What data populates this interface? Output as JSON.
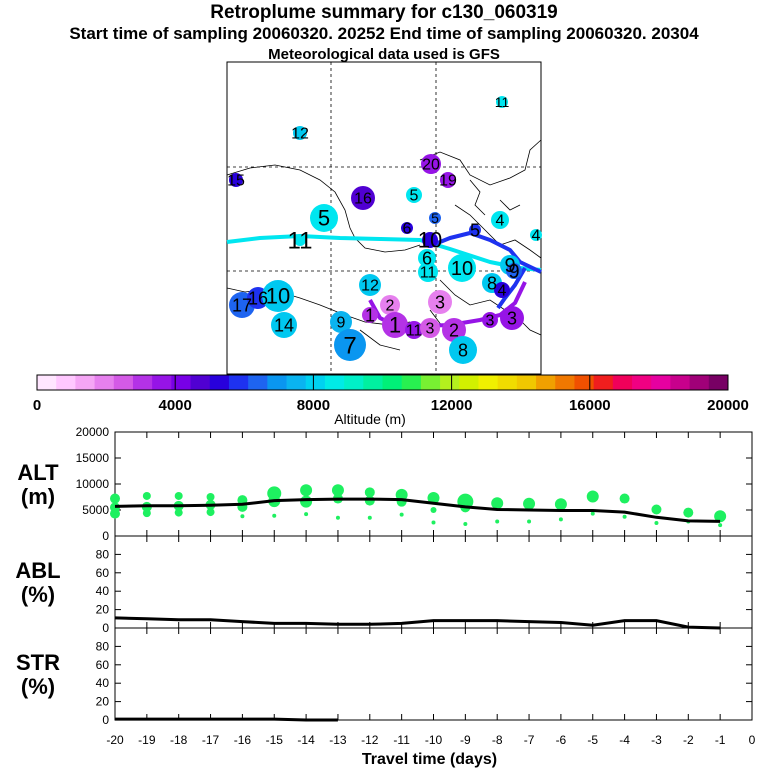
{
  "header": {
    "title": "Retroplume summary for c130_060319",
    "subtitle": "Start time of sampling 20060320. 20252     End time of sampling 20060320. 20304",
    "met": "Meteorological data used is GFS"
  },
  "colorbar": {
    "label": "Altitude (m)",
    "ticks": [
      "0",
      "4000",
      "8000",
      "12000",
      "16000",
      "20000"
    ],
    "colors": [
      "#ffe6ff",
      "#ffc8ff",
      "#f5a6f5",
      "#e680ee",
      "#d45ae6",
      "#b432e6",
      "#9614e6",
      "#7800e6",
      "#5000d2",
      "#2800dc",
      "#1e32f0",
      "#1e64f0",
      "#0a96f0",
      "#0ab4f0",
      "#00d2f0",
      "#00ebe6",
      "#00f0c8",
      "#00f0a0",
      "#00f078",
      "#28f050",
      "#78f032",
      "#b4f01e",
      "#d2f000",
      "#f0f000",
      "#f0dc00",
      "#f0c800",
      "#f0a000",
      "#f07800",
      "#f05000",
      "#f01e1e",
      "#f0005a",
      "#f00082",
      "#e600a0",
      "#c8008c",
      "#a00078",
      "#780064"
    ]
  },
  "map": {
    "labels": [
      {
        "t": "11",
        "c": "#00e6f0"
      },
      {
        "t": "12",
        "c": "#00c8f0"
      },
      {
        "t": "20",
        "c": "#9614e6"
      },
      {
        "t": "19",
        "c": "#9614e6"
      },
      {
        "t": "5",
        "c": "#00e6f0"
      },
      {
        "t": "16",
        "c": "#5000d2"
      },
      {
        "t": "15",
        "c": "#2800dc"
      },
      {
        "t": "5",
        "c": "#00e6f0"
      },
      {
        "t": "5",
        "c": "#1e64f0"
      },
      {
        "t": "4",
        "c": "#00e6f0"
      },
      {
        "t": "11",
        "c": "#00e6f0"
      },
      {
        "t": "10",
        "c": "#2800dc"
      },
      {
        "t": "5",
        "c": "#1e32f0"
      },
      {
        "t": "6",
        "c": "#2800dc"
      },
      {
        "t": "6",
        "c": "#00e6f0"
      },
      {
        "t": "11",
        "c": "#00e6f0"
      },
      {
        "t": "10",
        "c": "#00e6f0"
      },
      {
        "t": "9",
        "c": "#00c8f0"
      },
      {
        "t": "9",
        "c": "#1e64f0"
      },
      {
        "t": "8",
        "c": "#00c8f0"
      },
      {
        "t": "4",
        "c": "#2800dc"
      },
      {
        "t": "3",
        "c": "#e680ee"
      },
      {
        "t": "12",
        "c": "#00c8f0"
      },
      {
        "t": "2",
        "c": "#e680ee"
      },
      {
        "t": "1",
        "c": "#b432e6"
      },
      {
        "t": "1",
        "c": "#b432e6"
      },
      {
        "t": "11",
        "c": "#9614e6"
      },
      {
        "t": "3",
        "c": "#d45ae6"
      },
      {
        "t": "2",
        "c": "#b432e6"
      },
      {
        "t": "3",
        "c": "#9614e6"
      },
      {
        "t": "3",
        "c": "#9614e6"
      },
      {
        "t": "17",
        "c": "#1e64f0"
      },
      {
        "t": "16",
        "c": "#1e32f0"
      },
      {
        "t": "10",
        "c": "#00c8f0"
      },
      {
        "t": "14",
        "c": "#00c8f0"
      },
      {
        "t": "9",
        "c": "#0ab4f0"
      },
      {
        "t": "7",
        "c": "#0a96f0"
      },
      {
        "t": "8",
        "c": "#00c8f0"
      },
      {
        "t": "4",
        "c": "#00e6f0"
      }
    ]
  },
  "chart_data": [
    {
      "type": "scatter",
      "panel": "ALT",
      "ylabel_lines": [
        "ALT",
        "(m)"
      ],
      "ylim": [
        0,
        20000
      ],
      "yticks": [
        "0",
        "5000",
        "10000",
        "15000",
        "20000"
      ],
      "xlim": [
        -20,
        0
      ],
      "line": {
        "x": [
          -20,
          -19,
          -18,
          -17,
          -16,
          -15,
          -14,
          -13,
          -12,
          -11,
          -10,
          -9,
          -8,
          -7,
          -6,
          -5,
          -4,
          -3,
          -2,
          -1
        ],
        "y": [
          5700,
          5800,
          5800,
          5900,
          6100,
          6800,
          7000,
          7100,
          7100,
          7000,
          6300,
          5600,
          5100,
          5000,
          4900,
          4900,
          4600,
          3600,
          2900,
          2800
        ]
      },
      "points": {
        "x": [
          -20,
          -20,
          -20,
          -19,
          -19,
          -19,
          -18,
          -18,
          -18,
          -17,
          -17,
          -17,
          -16,
          -16,
          -16,
          -15,
          -15,
          -15,
          -14,
          -14,
          -14,
          -13,
          -13,
          -13,
          -12,
          -12,
          -12,
          -11,
          -11,
          -11,
          -10,
          -10,
          -10,
          -9,
          -9,
          -9,
          -8,
          -8,
          -7,
          -7,
          -6,
          -6,
          -5,
          -5,
          -4,
          -4,
          -3,
          -3,
          -2,
          -2,
          -1,
          -1
        ],
        "y": [
          7200,
          5500,
          4300,
          7700,
          5600,
          4400,
          7700,
          5800,
          4500,
          7500,
          6000,
          4600,
          6900,
          5600,
          3800,
          8200,
          6700,
          3900,
          8800,
          6600,
          4200,
          8800,
          7200,
          3500,
          8400,
          6800,
          3500,
          7900,
          6600,
          4100,
          7300,
          5000,
          2600,
          6600,
          5500,
          2300,
          6300,
          2800,
          6200,
          2800,
          6100,
          3200,
          7600,
          4300,
          7200,
          3700,
          5100,
          2500,
          4500,
          2800,
          3800,
          2100
        ],
        "r": [
          5,
          5,
          5,
          4,
          5,
          4,
          4,
          5,
          4,
          4,
          5,
          4,
          5,
          5,
          2,
          7,
          6,
          2,
          6,
          6,
          2,
          6,
          5,
          2,
          5,
          5,
          2,
          6,
          5,
          2,
          6,
          3,
          2,
          8,
          5,
          2,
          6,
          2,
          6,
          2,
          6,
          2,
          6,
          2,
          5,
          2,
          5,
          2,
          5,
          2,
          6,
          2
        ],
        "color": "#1ef060"
      }
    },
    {
      "type": "line",
      "panel": "ABL",
      "ylabel_lines": [
        "ABL",
        "(%)"
      ],
      "ylim": [
        0,
        100
      ],
      "yticks": [
        "0",
        "20",
        "40",
        "60",
        "80"
      ],
      "xlim": [
        -20,
        0
      ],
      "x": [
        -20,
        -19,
        -18,
        -17,
        -16,
        -15,
        -14,
        -13,
        -12,
        -11,
        -10,
        -9,
        -8,
        -7,
        -6,
        -5,
        -4,
        -3,
        -2,
        -1
      ],
      "y": [
        11,
        10,
        9,
        9,
        7,
        5,
        5,
        4,
        4,
        5,
        8,
        8,
        8,
        7,
        6,
        3,
        8,
        8,
        1,
        0
      ]
    },
    {
      "type": "line",
      "panel": "STR",
      "ylabel_lines": [
        "STR",
        "(%)"
      ],
      "ylim": [
        0,
        100
      ],
      "yticks": [
        "0",
        "20",
        "40",
        "60",
        "80"
      ],
      "xlim": [
        -20,
        0
      ],
      "xticks": [
        "-20",
        "-19",
        "-18",
        "-17",
        "-16",
        "-15",
        "-14",
        "-13",
        "-12",
        "-11",
        "-10",
        "-9",
        "-8",
        "-7",
        "-6",
        "-5",
        "-4",
        "-3",
        "-2",
        "-1",
        "0"
      ],
      "xlabel": "Travel time (days)",
      "x": [
        -20,
        -19,
        -18,
        -17,
        -16,
        -15,
        -14,
        -13
      ],
      "y": [
        1,
        1,
        1,
        1,
        1,
        1,
        0,
        0
      ]
    }
  ]
}
